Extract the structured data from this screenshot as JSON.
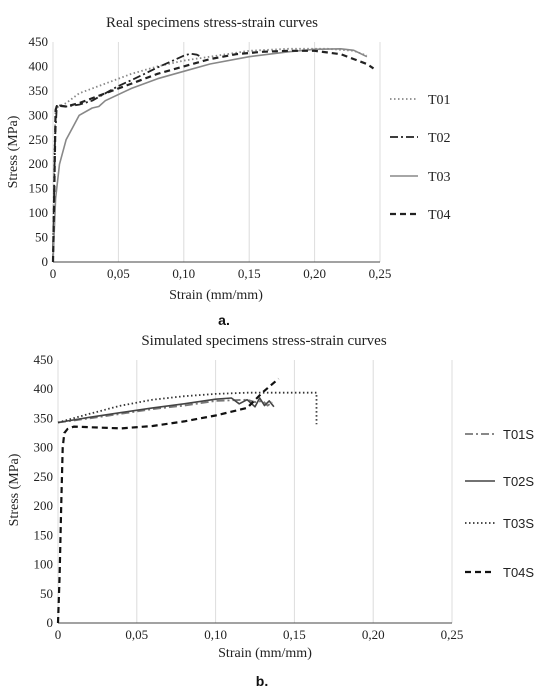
{
  "chart_data": [
    {
      "id": "a",
      "type": "line",
      "title": "Real specimens stress-strain curves",
      "xlabel": "Strain (mm/mm)",
      "ylabel": "Stress (MPa)",
      "xlim": [
        0,
        0.25
      ],
      "ylim": [
        0,
        450
      ],
      "xticks": [
        0,
        0.05,
        0.1,
        0.15,
        0.2,
        0.25
      ],
      "xtick_labels": [
        "0",
        "0,05",
        "0,10",
        "0,15",
        "0,20",
        "0,25"
      ],
      "yticks": [
        0,
        50,
        100,
        150,
        200,
        250,
        300,
        350,
        400,
        450
      ],
      "ytick_labels": [
        "0",
        "50",
        "100",
        "150",
        "200",
        "250",
        "300",
        "350",
        "400",
        "450"
      ],
      "grid": "vertical",
      "legend_position": "right",
      "caption": "a.",
      "series": [
        {
          "name": "T01",
          "style": "dotted",
          "color": "#888888",
          "x": [
            0,
            0.001,
            0.002,
            0.01,
            0.02,
            0.04,
            0.06,
            0.08,
            0.1,
            0.12,
            0.15,
            0.18,
            0.21,
            0.23,
            0.24
          ],
          "y": [
            0,
            220,
            315,
            325,
            345,
            365,
            385,
            400,
            412,
            420,
            432,
            436,
            436,
            432,
            422
          ]
        },
        {
          "name": "T02",
          "style": "dashdot",
          "color": "#222222",
          "x": [
            0,
            0.0015,
            0.003,
            0.006,
            0.01,
            0.02,
            0.03,
            0.04,
            0.05,
            0.06,
            0.07,
            0.08,
            0.09,
            0.1,
            0.105,
            0.11,
            0.113
          ],
          "y": [
            0,
            250,
            322,
            320,
            318,
            322,
            330,
            345,
            360,
            372,
            385,
            398,
            410,
            422,
            426,
            424,
            420
          ]
        },
        {
          "name": "T03",
          "style": "solid",
          "color": "#888888",
          "x": [
            0,
            0.002,
            0.005,
            0.01,
            0.02,
            0.03,
            0.035,
            0.04,
            0.06,
            0.08,
            0.1,
            0.12,
            0.15,
            0.18,
            0.2,
            0.22,
            0.23,
            0.24
          ],
          "y": [
            0,
            130,
            200,
            250,
            300,
            315,
            318,
            330,
            355,
            375,
            390,
            405,
            420,
            430,
            435,
            436,
            433,
            420
          ]
        },
        {
          "name": "T04",
          "style": "dashed",
          "color": "#222222",
          "x": [
            0,
            0.001,
            0.002,
            0.003,
            0.01,
            0.02,
            0.04,
            0.06,
            0.08,
            0.1,
            0.12,
            0.14,
            0.16,
            0.18,
            0.2,
            0.22,
            0.23,
            0.24,
            0.245
          ],
          "y": [
            0,
            150,
            310,
            320,
            318,
            325,
            345,
            365,
            385,
            400,
            415,
            425,
            430,
            432,
            432,
            425,
            415,
            405,
            396
          ]
        }
      ]
    },
    {
      "id": "b",
      "type": "line",
      "title": "Simulated specimens stress-strain curves",
      "xlabel": "Strain (mm/mm)",
      "ylabel": "Stress (MPa)",
      "xlim": [
        0,
        0.25
      ],
      "ylim": [
        0,
        450
      ],
      "xticks": [
        0,
        0.05,
        0.1,
        0.15,
        0.2,
        0.25
      ],
      "xtick_labels": [
        "0",
        "0,05",
        "0,10",
        "0,15",
        "0,20",
        "0,25"
      ],
      "yticks": [
        0,
        50,
        100,
        150,
        200,
        250,
        300,
        350,
        400,
        450
      ],
      "ytick_labels": [
        "0",
        "50",
        "100",
        "150",
        "200",
        "250",
        "300",
        "350",
        "400",
        "450"
      ],
      "grid": "vertical",
      "legend_position": "right",
      "caption": "b.",
      "series": [
        {
          "name": "T01S",
          "style": "dashdot",
          "color": "#777777",
          "x": [
            0,
            0.02,
            0.04,
            0.06,
            0.08,
            0.1,
            0.12,
            0.125,
            0.13,
            0.133,
            0.136
          ],
          "y": [
            343,
            350,
            358,
            366,
            372,
            380,
            382,
            378,
            380,
            372,
            378
          ]
        },
        {
          "name": "T02S",
          "style": "solid",
          "color": "#444444",
          "x": [
            0,
            0.02,
            0.04,
            0.06,
            0.08,
            0.1,
            0.11,
            0.115,
            0.12,
            0.125,
            0.128,
            0.131,
            0.134,
            0.137
          ],
          "y": [
            343,
            352,
            360,
            368,
            375,
            383,
            385,
            375,
            382,
            370,
            385,
            372,
            380,
            370
          ]
        },
        {
          "name": "T03S",
          "style": "dotted",
          "color": "#333333",
          "x": [
            0,
            0.02,
            0.04,
            0.06,
            0.08,
            0.1,
            0.12,
            0.14,
            0.16,
            0.164,
            0.164
          ],
          "y": [
            343,
            358,
            372,
            382,
            388,
            392,
            394,
            394,
            394,
            394,
            340
          ]
        },
        {
          "name": "T04S",
          "style": "dashed",
          "color": "#111111",
          "x": [
            0,
            0.001,
            0.002,
            0.003,
            0.004,
            0.006,
            0.01,
            0.02,
            0.04,
            0.06,
            0.08,
            0.1,
            0.12,
            0.13,
            0.14
          ],
          "y": [
            0,
            80,
            200,
            300,
            325,
            332,
            336,
            335,
            333,
            337,
            345,
            355,
            368,
            395,
            418
          ]
        }
      ]
    }
  ]
}
